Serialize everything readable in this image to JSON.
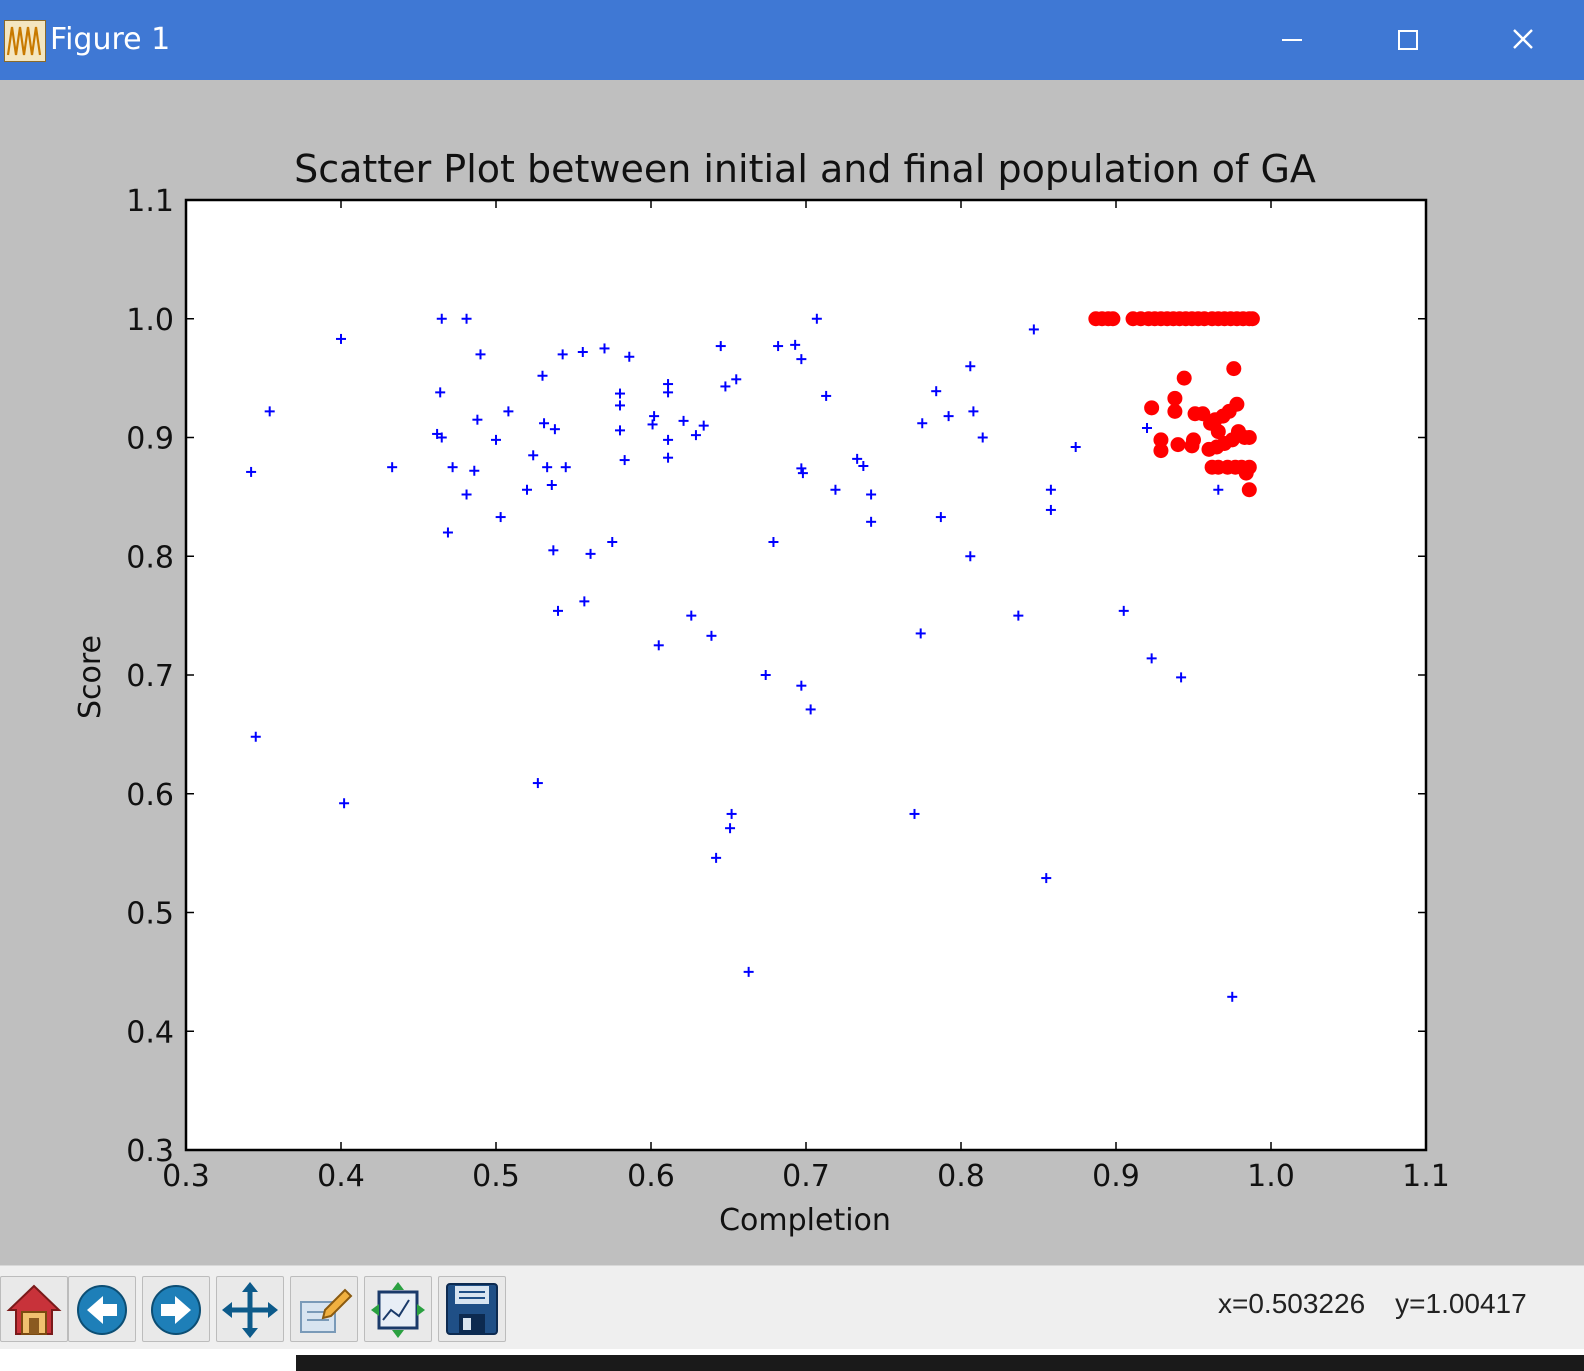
{
  "window": {
    "title": "Figure 1"
  },
  "toolbar": {
    "buttons": [
      "home-icon",
      "back-icon",
      "forward-icon",
      "pan-icon",
      "configure-subplots-icon",
      "zoom-rect-icon",
      "save-icon"
    ],
    "coord_x": "x=0.503226",
    "coord_y": "y=1.00417"
  },
  "colors": {
    "titlebar": "#3f78d4",
    "initial_marker": "#0000ff",
    "final_marker": "#ff0000",
    "figure_bg": "#bfbfbf"
  },
  "chart_data": {
    "type": "scatter",
    "title": "Scatter Plot between initial and final population of GA",
    "xlabel": "Completion",
    "ylabel": "Score",
    "xlim": [
      0.3,
      1.1
    ],
    "ylim": [
      0.3,
      1.1
    ],
    "xticks": [
      "0.3",
      "0.4",
      "0.5",
      "0.6",
      "0.7",
      "0.8",
      "0.9",
      "1.0",
      "1.1"
    ],
    "yticks": [
      "0.3",
      "0.4",
      "0.5",
      "0.6",
      "0.7",
      "0.8",
      "0.9",
      "1.0",
      "1.1"
    ],
    "grid": false,
    "series": [
      {
        "marker": "+",
        "color": "#0000ff",
        "points": [
          [
            0.342,
            0.871
          ],
          [
            0.345,
            0.648
          ],
          [
            0.354,
            0.922
          ],
          [
            0.4,
            0.983
          ],
          [
            0.402,
            0.592
          ],
          [
            0.433,
            0.875
          ],
          [
            0.465,
            1.0
          ],
          [
            0.481,
            1.0
          ],
          [
            0.49,
            0.97
          ],
          [
            0.462,
            0.903
          ],
          [
            0.464,
            0.938
          ],
          [
            0.465,
            0.9
          ],
          [
            0.469,
            0.82
          ],
          [
            0.472,
            0.875
          ],
          [
            0.481,
            0.852
          ],
          [
            0.486,
            0.872
          ],
          [
            0.488,
            0.915
          ],
          [
            0.5,
            0.898
          ],
          [
            0.503,
            0.833
          ],
          [
            0.508,
            0.922
          ],
          [
            0.52,
            0.856
          ],
          [
            0.524,
            0.885
          ],
          [
            0.527,
            0.609
          ],
          [
            0.53,
            0.952
          ],
          [
            0.531,
            0.912
          ],
          [
            0.533,
            0.875
          ],
          [
            0.536,
            0.86
          ],
          [
            0.537,
            0.805
          ],
          [
            0.538,
            0.907
          ],
          [
            0.54,
            0.754
          ],
          [
            0.543,
            0.97
          ],
          [
            0.545,
            0.875
          ],
          [
            0.556,
            0.972
          ],
          [
            0.557,
            0.762
          ],
          [
            0.561,
            0.802
          ],
          [
            0.57,
            0.975
          ],
          [
            0.575,
            0.812
          ],
          [
            0.58,
            0.937
          ],
          [
            0.58,
            0.927
          ],
          [
            0.58,
            0.906
          ],
          [
            0.583,
            0.881
          ],
          [
            0.586,
            0.968
          ],
          [
            0.601,
            0.911
          ],
          [
            0.602,
            0.918
          ],
          [
            0.605,
            0.725
          ],
          [
            0.611,
            0.945
          ],
          [
            0.611,
            0.938
          ],
          [
            0.611,
            0.898
          ],
          [
            0.611,
            0.883
          ],
          [
            0.621,
            0.914
          ],
          [
            0.626,
            0.75
          ],
          [
            0.629,
            0.902
          ],
          [
            0.634,
            0.91
          ],
          [
            0.639,
            0.733
          ],
          [
            0.642,
            0.546
          ],
          [
            0.645,
            0.977
          ],
          [
            0.648,
            0.943
          ],
          [
            0.651,
            0.571
          ],
          [
            0.652,
            0.583
          ],
          [
            0.655,
            0.949
          ],
          [
            0.663,
            0.45
          ],
          [
            0.674,
            0.7
          ],
          [
            0.679,
            0.812
          ],
          [
            0.682,
            0.977
          ],
          [
            0.693,
            0.978
          ],
          [
            0.697,
            0.966
          ],
          [
            0.697,
            0.874
          ],
          [
            0.698,
            0.87
          ],
          [
            0.697,
            0.691
          ],
          [
            0.703,
            0.671
          ],
          [
            0.707,
            1.0
          ],
          [
            0.713,
            0.935
          ],
          [
            0.719,
            0.856
          ],
          [
            0.733,
            0.882
          ],
          [
            0.737,
            0.876
          ],
          [
            0.742,
            0.852
          ],
          [
            0.742,
            0.829
          ],
          [
            0.77,
            0.583
          ],
          [
            0.774,
            0.735
          ],
          [
            0.775,
            0.912
          ],
          [
            0.784,
            0.939
          ],
          [
            0.787,
            0.833
          ],
          [
            0.792,
            0.918
          ],
          [
            0.806,
            0.96
          ],
          [
            0.806,
            0.8
          ],
          [
            0.808,
            0.922
          ],
          [
            0.814,
            0.9
          ],
          [
            0.837,
            0.75
          ],
          [
            0.847,
            0.991
          ],
          [
            0.855,
            0.529
          ],
          [
            0.858,
            0.856
          ],
          [
            0.858,
            0.839
          ],
          [
            0.874,
            0.892
          ],
          [
            0.905,
            0.754
          ],
          [
            0.92,
            0.908
          ],
          [
            0.923,
            0.714
          ],
          [
            0.942,
            0.698
          ],
          [
            0.966,
            0.856
          ],
          [
            0.975,
            0.429
          ]
        ]
      },
      {
        "marker": "o",
        "color": "#ff0000",
        "points": [
          [
            0.887,
            1.0
          ],
          [
            0.891,
            1.0
          ],
          [
            0.895,
            1.0
          ],
          [
            0.898,
            1.0
          ],
          [
            0.911,
            1.0
          ],
          [
            0.916,
            1.0
          ],
          [
            0.921,
            1.0
          ],
          [
            0.925,
            1.0
          ],
          [
            0.929,
            1.0
          ],
          [
            0.933,
            1.0
          ],
          [
            0.937,
            1.0
          ],
          [
            0.941,
            1.0
          ],
          [
            0.945,
            1.0
          ],
          [
            0.949,
            1.0
          ],
          [
            0.953,
            1.0
          ],
          [
            0.957,
            1.0
          ],
          [
            0.962,
            1.0
          ],
          [
            0.966,
            1.0
          ],
          [
            0.97,
            1.0
          ],
          [
            0.974,
            1.0
          ],
          [
            0.978,
            1.0
          ],
          [
            0.982,
            1.0
          ],
          [
            0.986,
            1.0
          ],
          [
            0.988,
            1.0
          ],
          [
            0.976,
            0.958
          ],
          [
            0.944,
            0.95
          ],
          [
            0.938,
            0.933
          ],
          [
            0.938,
            0.922
          ],
          [
            0.923,
            0.925
          ],
          [
            0.951,
            0.92
          ],
          [
            0.956,
            0.92
          ],
          [
            0.961,
            0.912
          ],
          [
            0.964,
            0.915
          ],
          [
            0.966,
            0.905
          ],
          [
            0.969,
            0.918
          ],
          [
            0.973,
            0.922
          ],
          [
            0.978,
            0.928
          ],
          [
            0.979,
            0.905
          ],
          [
            0.975,
            0.898
          ],
          [
            0.97,
            0.895
          ],
          [
            0.965,
            0.892
          ],
          [
            0.96,
            0.89
          ],
          [
            0.95,
            0.898
          ],
          [
            0.949,
            0.893
          ],
          [
            0.94,
            0.894
          ],
          [
            0.929,
            0.898
          ],
          [
            0.929,
            0.889
          ],
          [
            0.983,
            0.9
          ],
          [
            0.986,
            0.9
          ],
          [
            0.962,
            0.875
          ],
          [
            0.966,
            0.875
          ],
          [
            0.972,
            0.875
          ],
          [
            0.977,
            0.875
          ],
          [
            0.981,
            0.875
          ],
          [
            0.984,
            0.87
          ],
          [
            0.986,
            0.875
          ],
          [
            0.986,
            0.856
          ]
        ]
      }
    ]
  }
}
